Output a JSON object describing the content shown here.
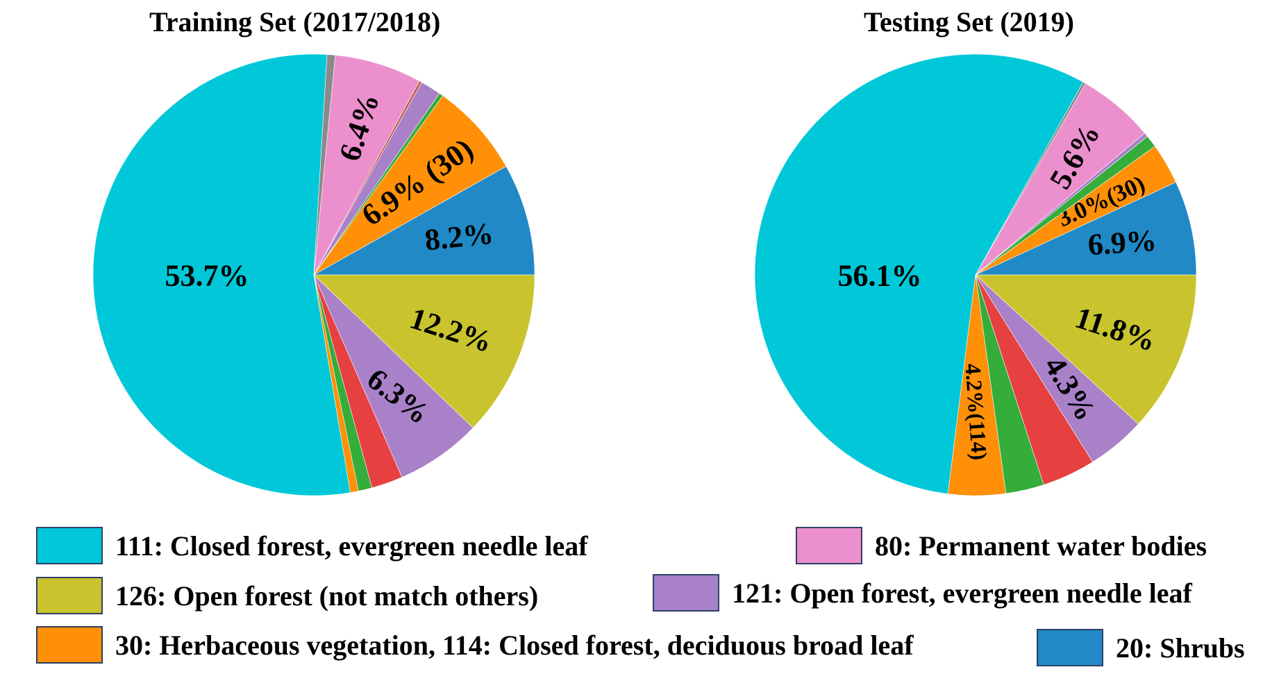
{
  "chart_data": [
    {
      "type": "pie",
      "title": "Training Set (2017/2018)",
      "start": "3 o'clock, counter-clockwise",
      "slices": [
        {
          "value": 8.2,
          "color": "#2089c6",
          "label": "8.2%"
        },
        {
          "value": 6.9,
          "color": "#ff9008",
          "label": "6.9% (30)"
        },
        {
          "value": 0.3,
          "color": "#34ad3a",
          "label": ""
        },
        {
          "value": 1.5,
          "color": "#a981c9",
          "label": ""
        },
        {
          "value": 0.2,
          "color": "#c06050",
          "label": ""
        },
        {
          "value": 6.4,
          "color": "#ec8fcd",
          "label": "6.4%"
        },
        {
          "value": 0.6,
          "color": "#8a8a8a",
          "label": ""
        },
        {
          "value": 53.7,
          "color": "#00c8d8",
          "label": "53.7%"
        },
        {
          "value": 0.6,
          "color": "#ff9008",
          "label": ""
        },
        {
          "value": 1.0,
          "color": "#34ad3a",
          "label": ""
        },
        {
          "value": 2.3,
          "color": "#e64040",
          "label": ""
        },
        {
          "value": 6.3,
          "color": "#a981c9",
          "label": "6.3%"
        },
        {
          "value": 12.2,
          "color": "#c9c42e",
          "label": "12.2%"
        }
      ]
    },
    {
      "type": "pie",
      "title": "Testing Set (2019)",
      "start": "3 o'clock, counter-clockwise",
      "slices": [
        {
          "value": 6.9,
          "color": "#2089c6",
          "label": "6.9%"
        },
        {
          "value": 3.0,
          "color": "#ff9008",
          "label": "3.0%(30)"
        },
        {
          "value": 0.9,
          "color": "#34ad3a",
          "label": ""
        },
        {
          "value": 0.3,
          "color": "#a981c9",
          "label": ""
        },
        {
          "value": 5.6,
          "color": "#ec8fcd",
          "label": "5.6%"
        },
        {
          "value": 0.2,
          "color": "#8a8a8a",
          "label": ""
        },
        {
          "value": 56.1,
          "color": "#00c8d8",
          "label": "56.1%"
        },
        {
          "value": 4.2,
          "color": "#ff9008",
          "label": "4.2%(114)"
        },
        {
          "value": 2.8,
          "color": "#34ad3a",
          "label": ""
        },
        {
          "value": 3.9,
          "color": "#e64040",
          "label": ""
        },
        {
          "value": 4.3,
          "color": "#a981c9",
          "label": "4.3%"
        },
        {
          "value": 11.8,
          "color": "#c9c42e",
          "label": "11.8%"
        }
      ]
    }
  ],
  "legend": [
    {
      "label": "111: Closed forest, evergreen needle leaf",
      "color": "#00c8d8"
    },
    {
      "label": "80: Permanent water bodies",
      "color": "#ec8fcd"
    },
    {
      "label": "126: Open forest (not match others)",
      "color": "#c9c42e"
    },
    {
      "label": "121: Open forest, evergreen needle leaf",
      "color": "#a981c9"
    },
    {
      "label": "30: Herbaceous vegetation, 114: Closed forest, deciduous broad leaf",
      "color": "#ff9008"
    },
    {
      "label": "20: Shrubs",
      "color": "#2089c6"
    }
  ]
}
